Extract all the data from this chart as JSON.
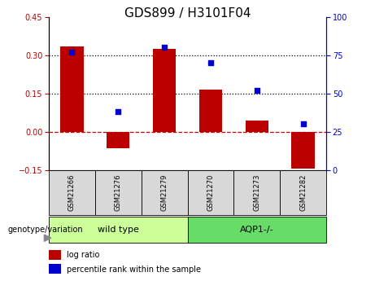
{
  "title": "GDS899 / H3101F04",
  "categories": [
    "GSM21266",
    "GSM21276",
    "GSM21279",
    "GSM21270",
    "GSM21273",
    "GSM21282"
  ],
  "log_ratio": [
    0.335,
    -0.065,
    0.325,
    0.165,
    0.045,
    -0.145
  ],
  "percentile_rank": [
    77,
    38,
    80,
    70,
    52,
    30
  ],
  "bar_color": "#bb0000",
  "dot_color": "#0000cc",
  "ylim_left": [
    -0.15,
    0.45
  ],
  "ylim_right": [
    0,
    100
  ],
  "yticks_left": [
    -0.15,
    0.0,
    0.15,
    0.3,
    0.45
  ],
  "yticks_right": [
    0,
    25,
    50,
    75,
    100
  ],
  "hline_y": [
    0.0,
    0.15,
    0.3
  ],
  "hline_colors": [
    "#cc0000",
    "#000000",
    "#000000"
  ],
  "hline_styles": [
    "dashed",
    "dotted",
    "dotted"
  ],
  "group1_label": "wild type",
  "group2_label": "AQP1-/-",
  "group1_color": "#ccff99",
  "group2_color": "#66dd66",
  "sample_box_color": "#d8d8d8",
  "genotype_label": "genotype/variation",
  "legend_bar_label": "log ratio",
  "legend_dot_label": "percentile rank within the sample",
  "title_fontsize": 11,
  "tick_fontsize": 7,
  "sample_fontsize": 6,
  "group_fontsize": 8,
  "legend_fontsize": 7,
  "genotype_fontsize": 7,
  "bar_width": 0.5
}
